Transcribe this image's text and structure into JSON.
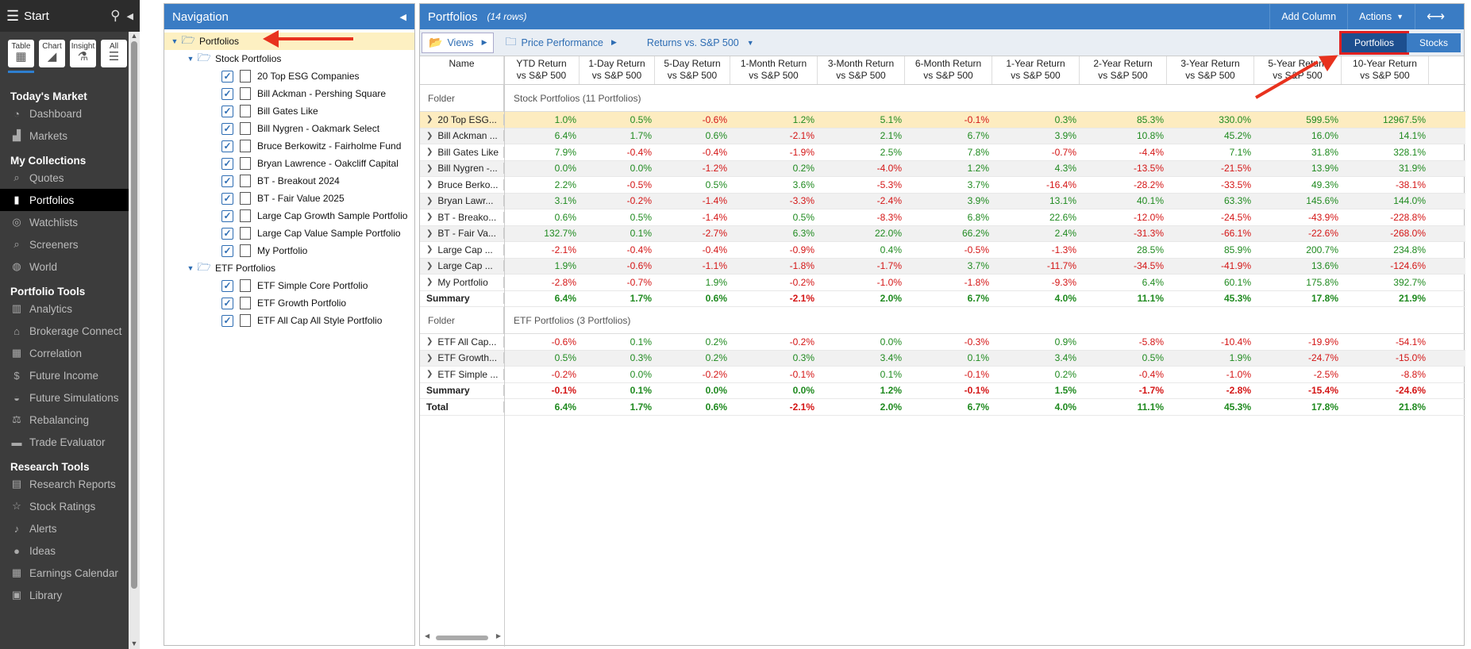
{
  "sidebar": {
    "title": "Start",
    "views": [
      {
        "label": "Table",
        "icon": "table-icon"
      },
      {
        "label": "Chart",
        "icon": "chart-icon"
      },
      {
        "label": "Insight",
        "icon": "insight-icon"
      },
      {
        "label": "All",
        "icon": "all-icon"
      }
    ],
    "sections": [
      {
        "title": "Today's Market",
        "items": [
          {
            "label": "Dashboard",
            "icon": "dashboard-icon"
          },
          {
            "label": "Markets",
            "icon": "markets-icon"
          }
        ]
      },
      {
        "title": "My Collections",
        "items": [
          {
            "label": "Quotes",
            "icon": "quotes-icon"
          },
          {
            "label": "Portfolios",
            "icon": "portfolios-icon",
            "active": true
          },
          {
            "label": "Watchlists",
            "icon": "watchlists-icon"
          },
          {
            "label": "Screeners",
            "icon": "screeners-icon"
          },
          {
            "label": "World",
            "icon": "world-icon"
          }
        ]
      },
      {
        "title": "Portfolio Tools",
        "items": [
          {
            "label": "Analytics",
            "icon": "analytics-icon"
          },
          {
            "label": "Brokerage Connect",
            "icon": "brokerage-icon"
          },
          {
            "label": "Correlation",
            "icon": "correlation-icon"
          },
          {
            "label": "Future Income",
            "icon": "dollar-icon"
          },
          {
            "label": "Future Simulations",
            "icon": "simulations-icon"
          },
          {
            "label": "Rebalancing",
            "icon": "scale-icon"
          },
          {
            "label": "Trade Evaluator",
            "icon": "briefcase-icon"
          }
        ]
      },
      {
        "title": "Research Tools",
        "items": [
          {
            "label": "Research Reports",
            "icon": "reports-icon"
          },
          {
            "label": "Stock Ratings",
            "icon": "star-icon"
          },
          {
            "label": "Alerts",
            "icon": "bell-icon"
          },
          {
            "label": "Ideas",
            "icon": "bulb-icon"
          },
          {
            "label": "Earnings Calendar",
            "icon": "calendar-icon"
          },
          {
            "label": "Library",
            "icon": "book-icon"
          }
        ]
      }
    ]
  },
  "navigation": {
    "title": "Navigation",
    "root": "Portfolios",
    "folders": [
      {
        "name": "Stock Portfolios",
        "items": [
          "20 Top ESG Companies",
          "Bill Ackman - Pershing Square",
          "Bill Gates Like",
          "Bill Nygren - Oakmark Select",
          "Bruce Berkowitz - Fairholme Fund",
          "Bryan Lawrence - Oakcliff Capital",
          "BT - Breakout 2024",
          "BT - Fair Value 2025",
          "Large Cap Growth Sample Portfolio",
          "Large Cap Value Sample Portfolio",
          "My Portfolio"
        ]
      },
      {
        "name": "ETF Portfolios",
        "items": [
          "ETF Simple Core Portfolio",
          "ETF Growth Portfolio",
          "ETF All Cap All Style Portfolio"
        ]
      }
    ]
  },
  "main": {
    "title": "Portfolios",
    "rows_label": "(14 rows)",
    "add_column": "Add Column",
    "actions": "Actions",
    "toolbar": {
      "views": "Views",
      "price_performance": "Price Performance",
      "returns": "Returns vs. S&P 500"
    },
    "toggle": {
      "portfolios": "Portfolios",
      "stocks": "Stocks"
    },
    "columns": [
      [
        "Name",
        ""
      ],
      [
        "YTD Return",
        "vs S&P 500"
      ],
      [
        "1-Day Return",
        "vs S&P 500"
      ],
      [
        "5-Day Return",
        "vs S&P 500"
      ],
      [
        "1-Month Return",
        "vs S&P 500"
      ],
      [
        "3-Month Return",
        "vs S&P 500"
      ],
      [
        "6-Month Return",
        "vs S&P 500"
      ],
      [
        "1-Year Return",
        "vs S&P 500"
      ],
      [
        "2-Year Return",
        "vs S&P 500"
      ],
      [
        "3-Year Return",
        "vs S&P 500"
      ],
      [
        "5-Year Return",
        "vs S&P 500"
      ],
      [
        "10-Year Return",
        "vs S&P 500"
      ]
    ],
    "groups": [
      {
        "folder_label": "Folder",
        "folder_desc": "Stock Portfolios (11 Portfolios)",
        "rows": [
          {
            "name": "20 Top ESG...",
            "vals": [
              "1.0%",
              "0.5%",
              "-0.6%",
              "1.2%",
              "5.1%",
              "-0.1%",
              "0.3%",
              "85.3%",
              "330.0%",
              "599.5%",
              "12967.5%"
            ]
          },
          {
            "name": "Bill Ackman ...",
            "vals": [
              "6.4%",
              "1.7%",
              "0.6%",
              "-2.1%",
              "2.1%",
              "6.7%",
              "3.9%",
              "10.8%",
              "45.2%",
              "16.0%",
              "14.1%"
            ]
          },
          {
            "name": "Bill Gates Like",
            "vals": [
              "7.9%",
              "-0.4%",
              "-0.4%",
              "-1.9%",
              "2.5%",
              "7.8%",
              "-0.7%",
              "-4.4%",
              "7.1%",
              "31.8%",
              "328.1%"
            ]
          },
          {
            "name": "Bill Nygren -...",
            "vals": [
              "0.0%",
              "0.0%",
              "-1.2%",
              "0.2%",
              "-4.0%",
              "1.2%",
              "4.3%",
              "-13.5%",
              "-21.5%",
              "13.9%",
              "31.9%"
            ]
          },
          {
            "name": "Bruce Berko...",
            "vals": [
              "2.2%",
              "-0.5%",
              "0.5%",
              "3.6%",
              "-5.3%",
              "3.7%",
              "-16.4%",
              "-28.2%",
              "-33.5%",
              "49.3%",
              "-38.1%"
            ]
          },
          {
            "name": "Bryan Lawr...",
            "vals": [
              "3.1%",
              "-0.2%",
              "-1.4%",
              "-3.3%",
              "-2.4%",
              "3.9%",
              "13.1%",
              "40.1%",
              "63.3%",
              "145.6%",
              "144.0%"
            ]
          },
          {
            "name": "BT - Breako...",
            "vals": [
              "0.6%",
              "0.5%",
              "-1.4%",
              "0.5%",
              "-8.3%",
              "6.8%",
              "22.6%",
              "-12.0%",
              "-24.5%",
              "-43.9%",
              "-228.8%"
            ]
          },
          {
            "name": "BT - Fair Va...",
            "vals": [
              "132.7%",
              "0.1%",
              "-2.7%",
              "6.3%",
              "22.0%",
              "66.2%",
              "2.4%",
              "-31.3%",
              "-66.1%",
              "-22.6%",
              "-268.0%"
            ]
          },
          {
            "name": "Large Cap ...",
            "vals": [
              "-2.1%",
              "-0.4%",
              "-0.4%",
              "-0.9%",
              "0.4%",
              "-0.5%",
              "-1.3%",
              "28.5%",
              "85.9%",
              "200.7%",
              "234.8%"
            ]
          },
          {
            "name": "Large Cap ...",
            "vals": [
              "1.9%",
              "-0.6%",
              "-1.1%",
              "-1.8%",
              "-1.7%",
              "3.7%",
              "-11.7%",
              "-34.5%",
              "-41.9%",
              "13.6%",
              "-124.6%"
            ]
          },
          {
            "name": "My Portfolio",
            "vals": [
              "-2.8%",
              "-0.7%",
              "1.9%",
              "-0.2%",
              "-1.0%",
              "-1.8%",
              "-9.3%",
              "6.4%",
              "60.1%",
              "175.8%",
              "392.7%"
            ]
          }
        ],
        "summary": {
          "name": "Summary",
          "vals": [
            "6.4%",
            "1.7%",
            "0.6%",
            "-2.1%",
            "2.0%",
            "6.7%",
            "4.0%",
            "11.1%",
            "45.3%",
            "17.8%",
            "21.9%"
          ]
        }
      },
      {
        "folder_label": "Folder",
        "folder_desc": "ETF Portfolios (3 Portfolios)",
        "rows": [
          {
            "name": "ETF All Cap...",
            "vals": [
              "-0.6%",
              "0.1%",
              "0.2%",
              "-0.2%",
              "0.0%",
              "-0.3%",
              "0.9%",
              "-5.8%",
              "-10.4%",
              "-19.9%",
              "-54.1%"
            ]
          },
          {
            "name": "ETF Growth...",
            "vals": [
              "0.5%",
              "0.3%",
              "0.2%",
              "0.3%",
              "3.4%",
              "0.1%",
              "3.4%",
              "0.5%",
              "1.9%",
              "-24.7%",
              "-15.0%"
            ]
          },
          {
            "name": "ETF Simple ...",
            "vals": [
              "-0.2%",
              "0.0%",
              "-0.2%",
              "-0.1%",
              "0.1%",
              "-0.1%",
              "0.2%",
              "-0.4%",
              "-1.0%",
              "-2.5%",
              "-8.8%"
            ]
          }
        ],
        "summary": {
          "name": "Summary",
          "vals": [
            "-0.1%",
            "0.1%",
            "0.0%",
            "0.0%",
            "1.2%",
            "-0.1%",
            "1.5%",
            "-1.7%",
            "-2.8%",
            "-15.4%",
            "-24.6%"
          ]
        }
      }
    ],
    "total": {
      "name": "Total",
      "vals": [
        "6.4%",
        "1.7%",
        "0.6%",
        "-2.1%",
        "2.0%",
        "6.7%",
        "4.0%",
        "11.1%",
        "45.3%",
        "17.8%",
        "21.8%"
      ]
    }
  },
  "colors": {
    "accent": "#3a7cc4",
    "positive": "#1f8a1f",
    "negative": "#d41515",
    "highlight": "#fdecc0",
    "arrow": "#e8321e"
  }
}
